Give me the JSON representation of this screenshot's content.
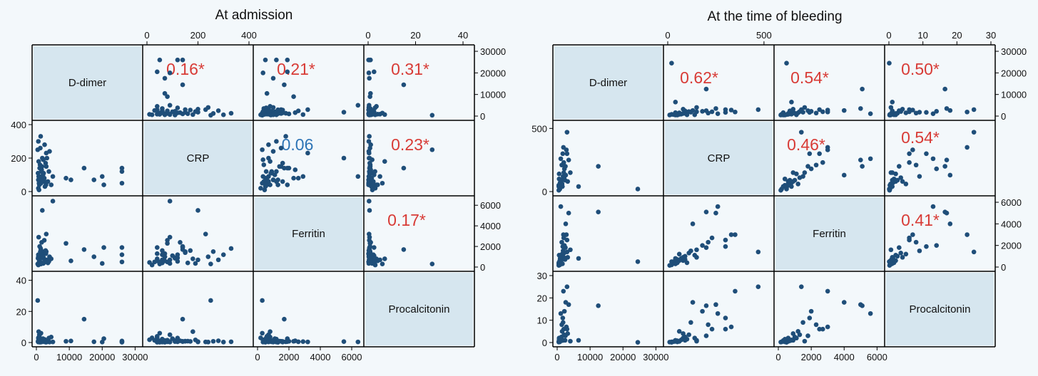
{
  "page": {
    "background": "#f3f8fb"
  },
  "colors": {
    "point": "#1f4e79",
    "diagonal": "#d6e6ef",
    "significant": "#d83b36",
    "nonsignificant": "#2e75b6",
    "frame": "#000000"
  },
  "chart_data": [
    {
      "type": "scatter",
      "title": "At admission",
      "variables": [
        "D-dimer",
        "CRP",
        "Ferritin",
        "Procalcitonin"
      ],
      "ranges": {
        "D-dimer": [
          0,
          31000
        ],
        "CRP": [
          0,
          400
        ],
        "Ferritin": [
          0,
          6500
        ],
        "Procalcitonin": [
          0,
          43
        ]
      },
      "ticks": {
        "D-dimer": [
          "0",
          "10000",
          "20000",
          "30000"
        ],
        "CRP": [
          "0",
          "200",
          "400"
        ],
        "Ferritin": [
          "0",
          "2000",
          "4000",
          "6000"
        ],
        "Procalcitonin": [
          "0",
          "20",
          "40"
        ]
      },
      "correlations": [
        {
          "pair": [
            "D-dimer",
            "CRP"
          ],
          "label": "0.16*",
          "significant": true
        },
        {
          "pair": [
            "D-dimer",
            "Ferritin"
          ],
          "label": "0.21*",
          "significant": true
        },
        {
          "pair": [
            "D-dimer",
            "Procalcitonin"
          ],
          "label": "0.31*",
          "significant": true
        },
        {
          "pair": [
            "CRP",
            "Ferritin"
          ],
          "label": "0.06",
          "significant": false
        },
        {
          "pair": [
            "CRP",
            "Procalcitonin"
          ],
          "label": "0.23*",
          "significant": true
        },
        {
          "pair": [
            "Ferritin",
            "Procalcitonin"
          ],
          "label": "0.17*",
          "significant": true
        }
      ],
      "observations": [
        [
          800,
          50,
          400,
          1.0
        ],
        [
          1500,
          120,
          900,
          0.5
        ],
        [
          2500,
          60,
          700,
          2.0
        ],
        [
          600,
          300,
          1200,
          0.3
        ],
        [
          1200,
          80,
          500,
          1.5
        ],
        [
          3000,
          150,
          1500,
          0.8
        ],
        [
          400,
          250,
          300,
          27
        ],
        [
          2000,
          100,
          1100,
          2.5
        ],
        [
          900,
          40,
          600,
          4.0
        ],
        [
          1800,
          200,
          5500,
          0.6
        ],
        [
          5000,
          90,
          6400,
          0.4
        ],
        [
          700,
          180,
          800,
          7.0
        ],
        [
          1100,
          70,
          1300,
          0.2
        ],
        [
          2200,
          110,
          900,
          1.2
        ],
        [
          1300,
          330,
          1800,
          0.5
        ],
        [
          3500,
          60,
          400,
          0.9
        ],
        [
          600,
          20,
          200,
          3.0
        ],
        [
          1600,
          130,
          2400,
          1.1
        ],
        [
          2800,
          170,
          1600,
          0.7
        ],
        [
          900,
          90,
          700,
          5.0
        ],
        [
          4000,
          240,
          1000,
          0.3
        ],
        [
          1400,
          50,
          300,
          6.0
        ],
        [
          1000,
          140,
          2000,
          0.8
        ],
        [
          2600,
          30,
          500,
          1.4
        ],
        [
          500,
          110,
          850,
          0.6
        ],
        [
          1900,
          60,
          1200,
          2.2
        ],
        [
          3200,
          200,
          700,
          0.4
        ],
        [
          800,
          10,
          450,
          1.8
        ],
        [
          1700,
          150,
          1400,
          0.9
        ],
        [
          2400,
          80,
          2600,
          0.5
        ],
        [
          9000,
          80,
          2300,
          0.8
        ],
        [
          14500,
          140,
          1700,
          15
        ],
        [
          10500,
          70,
          600,
          1.0
        ],
        [
          17500,
          70,
          1000,
          0.5
        ],
        [
          20000,
          90,
          350,
          0.3
        ],
        [
          20500,
          40,
          1900,
          2.5
        ],
        [
          26000,
          140,
          1900,
          0.6
        ],
        [
          26000,
          120,
          1200,
          1.0
        ],
        [
          26000,
          50,
          500,
          0.2
        ],
        [
          3000,
          230,
          3200,
          0.4
        ],
        [
          2500,
          280,
          700,
          1.1
        ],
        [
          1200,
          260,
          1500,
          0.8
        ],
        [
          4500,
          40,
          800,
          3.5
        ],
        [
          700,
          90,
          2900,
          0.6
        ],
        [
          2100,
          190,
          350,
          1.7
        ],
        [
          1500,
          60,
          1600,
          0.3
        ],
        [
          3800,
          120,
          550,
          2.9
        ],
        [
          600,
          70,
          1000,
          1.3
        ],
        [
          2900,
          40,
          1300,
          0.2
        ],
        [
          1100,
          160,
          400,
          0.9
        ]
      ]
    },
    {
      "type": "scatter",
      "title": "At the time of bleeding",
      "variables": [
        "D-dimer",
        "CRP",
        "Ferritin",
        "Procalcitonin"
      ],
      "ranges": {
        "D-dimer": [
          0,
          31000
        ],
        "CRP": [
          0,
          530
        ],
        "Ferritin": [
          0,
          6200
        ],
        "Procalcitonin": [
          0,
          30
        ]
      },
      "ticks": {
        "D-dimer": [
          "0",
          "10000",
          "20000",
          "30000"
        ],
        "CRP": [
          "0",
          "500"
        ],
        "Ferritin": [
          "0",
          "2000",
          "4000",
          "6000"
        ],
        "Procalcitonin": [
          "0",
          "10",
          "20",
          "30"
        ]
      },
      "correlations": [
        {
          "pair": [
            "D-dimer",
            "CRP"
          ],
          "label": "0.62*",
          "significant": true
        },
        {
          "pair": [
            "D-dimer",
            "Ferritin"
          ],
          "label": "0.54*",
          "significant": true
        },
        {
          "pair": [
            "D-dimer",
            "Procalcitonin"
          ],
          "label": "0.50*",
          "significant": true
        },
        {
          "pair": [
            "CRP",
            "Ferritin"
          ],
          "label": "0.46*",
          "significant": true
        },
        {
          "pair": [
            "CRP",
            "Procalcitonin"
          ],
          "label": "0.54*",
          "significant": true
        },
        {
          "pair": [
            "Ferritin",
            "Procalcitonin"
          ],
          "label": "0.41*",
          "significant": true
        }
      ],
      "observations": [
        [
          500,
          40,
          300,
          0.5
        ],
        [
          1200,
          80,
          600,
          2.0
        ],
        [
          2000,
          150,
          900,
          1.0
        ],
        [
          800,
          20,
          200,
          0.3
        ],
        [
          1500,
          60,
          1200,
          5.0
        ],
        [
          2500,
          200,
          1800,
          3.0
        ],
        [
          3000,
          300,
          2500,
          6.0
        ],
        [
          600,
          100,
          400,
          1.5
        ],
        [
          1000,
          50,
          700,
          0.8
        ],
        [
          1800,
          120,
          1500,
          9.0
        ],
        [
          2200,
          180,
          2000,
          14
        ],
        [
          700,
          30,
          500,
          0.4
        ],
        [
          3500,
          250,
          5000,
          17
        ],
        [
          1300,
          90,
          1000,
          2.5
        ],
        [
          2800,
          330,
          3000,
          7.0
        ],
        [
          900,
          70,
          800,
          1.2
        ],
        [
          4000,
          150,
          1600,
          0.6
        ],
        [
          1600,
          40,
          300,
          0.9
        ],
        [
          2100,
          110,
          1300,
          3.5
        ],
        [
          500,
          10,
          150,
          0.2
        ],
        [
          12500,
          200,
          5100,
          16.5
        ],
        [
          24500,
          20,
          500,
          0.1
        ],
        [
          6500,
          40,
          800,
          1.0
        ],
        [
          3000,
          470,
          1400,
          25
        ],
        [
          1100,
          260,
          5600,
          13
        ],
        [
          1900,
          350,
          3000,
          23
        ],
        [
          2600,
          130,
          4000,
          18
        ],
        [
          800,
          60,
          600,
          0.5
        ],
        [
          1400,
          210,
          2300,
          8.0
        ],
        [
          3200,
          80,
          900,
          4.0
        ],
        [
          600,
          140,
          1100,
          2.0
        ],
        [
          2400,
          90,
          700,
          1.0
        ],
        [
          1700,
          300,
          1900,
          11
        ],
        [
          500,
          50,
          400,
          0.3
        ],
        [
          2000,
          230,
          2700,
          6.0
        ]
      ]
    }
  ]
}
